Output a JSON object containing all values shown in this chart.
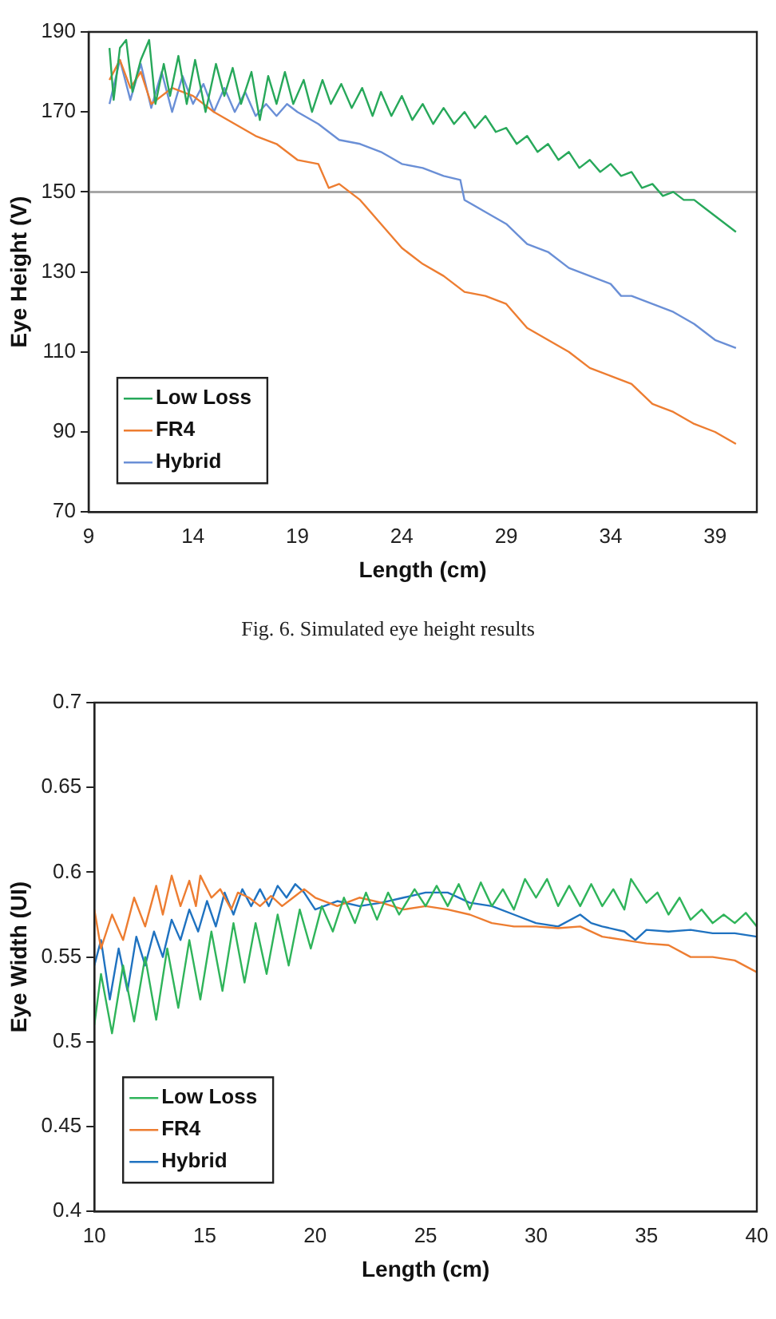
{
  "chart_data": [
    {
      "type": "line",
      "xlabel": "Length (cm)",
      "ylabel": "Eye Height (V)",
      "xlim": [
        9,
        41
      ],
      "xticks": [
        9,
        14,
        19,
        24,
        29,
        34,
        39
      ],
      "ylim": [
        70,
        190
      ],
      "yticks": [
        70,
        90,
        110,
        130,
        150,
        170,
        190
      ],
      "grid": false,
      "legend": "bottom left",
      "marker": "none",
      "line_style": "solid",
      "ref_lines": [
        {
          "axis": "y",
          "value": 150,
          "color": "#a6a6a6"
        }
      ],
      "annotations": [
        "Fig. 6.  Simulated eye height results"
      ],
      "series": [
        {
          "name": "Low Loss",
          "color": "#27a85a",
          "x": [
            10,
            10.2,
            10.5,
            10.8,
            11.1,
            11.5,
            11.9,
            12.2,
            12.6,
            12.9,
            13.3,
            13.7,
            14.1,
            14.6,
            15.1,
            15.5,
            15.9,
            16.3,
            16.8,
            17.2,
            17.6,
            18,
            18.4,
            18.8,
            19.3,
            19.7,
            20.2,
            20.6,
            21.1,
            21.6,
            22.1,
            22.6,
            23,
            23.5,
            24,
            24.5,
            25,
            25.5,
            26,
            26.5,
            27,
            27.5,
            28,
            28.5,
            29,
            29.5,
            30,
            30.5,
            31,
            31.5,
            32,
            32.5,
            33,
            33.5,
            34,
            34.5,
            35,
            35.5,
            36,
            36.5,
            37,
            37.5,
            38,
            38.5,
            39,
            39.5,
            40
          ],
          "values": [
            186,
            173,
            186,
            188,
            175,
            183,
            188,
            172,
            182,
            174,
            184,
            172,
            183,
            170,
            182,
            174,
            181,
            172,
            180,
            168,
            179,
            172,
            180,
            172,
            178,
            170,
            178,
            172,
            177,
            171,
            176,
            169,
            175,
            169,
            174,
            168,
            172,
            167,
            171,
            167,
            170,
            166,
            169,
            165,
            166,
            162,
            164,
            160,
            162,
            158,
            160,
            156,
            158,
            155,
            157,
            154,
            155,
            151,
            152,
            149,
            150,
            148,
            148,
            146,
            144,
            142,
            140
          ]
        },
        {
          "name": "FR4",
          "color": "#ed7d31",
          "x": [
            10,
            10.5,
            11,
            11.5,
            12,
            13,
            14,
            15,
            16,
            17,
            18,
            19,
            20,
            20.5,
            21,
            22,
            23,
            24,
            25,
            26,
            27,
            28,
            29,
            30,
            31,
            32,
            33,
            34,
            35,
            36,
            37,
            38,
            39,
            40
          ],
          "values": [
            178,
            183,
            176,
            180,
            172,
            176,
            174,
            170,
            167,
            164,
            162,
            158,
            157,
            151,
            152,
            148,
            142,
            136,
            132,
            129,
            125,
            124,
            122,
            116,
            113,
            110,
            106,
            104,
            102,
            97,
            95,
            92,
            90,
            87
          ]
        },
        {
          "name": "Hybrid",
          "color": "#6a8fd6",
          "x": [
            10,
            10.5,
            11,
            11.5,
            12,
            12.5,
            13,
            13.5,
            14,
            14.5,
            15,
            15.5,
            16,
            16.5,
            17,
            17.5,
            18,
            18.5,
            19,
            20,
            21,
            22,
            23,
            24,
            25,
            26,
            26.8,
            27,
            28,
            29,
            30,
            31,
            32,
            33,
            34,
            34.5,
            35,
            36,
            37,
            38,
            39,
            40
          ],
          "values": [
            172,
            183,
            173,
            182,
            171,
            180,
            170,
            179,
            172,
            177,
            170,
            176,
            170,
            175,
            169,
            172,
            169,
            172,
            170,
            167,
            163,
            162,
            160,
            157,
            156,
            154,
            153,
            148,
            145,
            142,
            137,
            135,
            131,
            129,
            127,
            124,
            124,
            122,
            120,
            117,
            113,
            111
          ]
        }
      ]
    },
    {
      "type": "line",
      "xlabel": "Length (cm)",
      "ylabel": "Eye Width (UI)",
      "xlim": [
        10,
        40
      ],
      "xticks": [
        10,
        15,
        20,
        25,
        30,
        35,
        40
      ],
      "ylim": [
        0.4,
        0.7
      ],
      "yticks": [
        0.4,
        0.45,
        0.5,
        0.55,
        0.6,
        0.65,
        0.7
      ],
      "grid": false,
      "legend": "bottom left",
      "marker": "none",
      "line_style": "solid",
      "series": [
        {
          "name": "Low Loss",
          "color": "#2fb45a",
          "x": [
            10,
            10.3,
            10.8,
            11.3,
            11.8,
            12.3,
            12.8,
            13.3,
            13.8,
            14.3,
            14.8,
            15.3,
            15.8,
            16.3,
            16.8,
            17.3,
            17.8,
            18.3,
            18.8,
            19.3,
            19.8,
            20.3,
            20.8,
            21.3,
            21.8,
            22.3,
            22.8,
            23.3,
            23.8,
            24.5,
            25,
            25.5,
            26,
            26.5,
            27,
            27.5,
            28,
            28.5,
            29,
            29.5,
            30,
            30.5,
            31,
            31.5,
            32,
            32.5,
            33,
            33.5,
            34,
            34.3,
            35,
            35.5,
            36,
            36.5,
            37,
            37.5,
            38,
            38.5,
            39,
            39.5,
            40
          ],
          "values": [
            0.51,
            0.54,
            0.505,
            0.545,
            0.512,
            0.55,
            0.513,
            0.555,
            0.52,
            0.56,
            0.525,
            0.565,
            0.53,
            0.57,
            0.535,
            0.57,
            0.54,
            0.575,
            0.545,
            0.578,
            0.555,
            0.58,
            0.565,
            0.585,
            0.57,
            0.588,
            0.572,
            0.588,
            0.575,
            0.59,
            0.58,
            0.592,
            0.58,
            0.593,
            0.578,
            0.594,
            0.58,
            0.59,
            0.578,
            0.596,
            0.585,
            0.596,
            0.58,
            0.592,
            0.58,
            0.593,
            0.58,
            0.59,
            0.578,
            0.596,
            0.582,
            0.588,
            0.575,
            0.585,
            0.572,
            0.578,
            0.57,
            0.575,
            0.57,
            0.576,
            0.568
          ]
        },
        {
          "name": "FR4",
          "color": "#ed7d31",
          "x": [
            10,
            10.3,
            10.8,
            11.3,
            11.8,
            12.3,
            12.8,
            13.1,
            13.5,
            13.9,
            14.3,
            14.6,
            14.8,
            15.3,
            15.7,
            16.2,
            16.5,
            17,
            17.5,
            18,
            18.5,
            19,
            19.5,
            20,
            21,
            22,
            23,
            24,
            25,
            26,
            27,
            28,
            29,
            30,
            31,
            32,
            33,
            34,
            35,
            36,
            37,
            38,
            39,
            40
          ],
          "values": [
            0.578,
            0.555,
            0.575,
            0.56,
            0.585,
            0.568,
            0.592,
            0.575,
            0.598,
            0.58,
            0.595,
            0.58,
            0.598,
            0.585,
            0.59,
            0.578,
            0.588,
            0.585,
            0.58,
            0.586,
            0.58,
            0.585,
            0.59,
            0.585,
            0.58,
            0.585,
            0.582,
            0.578,
            0.58,
            0.578,
            0.575,
            0.57,
            0.568,
            0.568,
            0.567,
            0.568,
            0.562,
            0.56,
            0.558,
            0.557,
            0.55,
            0.55,
            0.548,
            0.541
          ]
        },
        {
          "name": "Hybrid",
          "color": "#1f72c0",
          "x": [
            10,
            10.3,
            10.7,
            11.1,
            11.5,
            11.9,
            12.3,
            12.7,
            13.1,
            13.5,
            13.9,
            14.3,
            14.7,
            15.1,
            15.5,
            15.9,
            16.3,
            16.7,
            17.1,
            17.5,
            17.9,
            18.3,
            18.7,
            19.1,
            19.5,
            20,
            21,
            22,
            23,
            24,
            25,
            26,
            27,
            28,
            29,
            30,
            31,
            32,
            32.5,
            33,
            34,
            34.5,
            35,
            36,
            37,
            38,
            39,
            40
          ],
          "values": [
            0.545,
            0.56,
            0.525,
            0.555,
            0.53,
            0.562,
            0.545,
            0.565,
            0.55,
            0.572,
            0.56,
            0.578,
            0.565,
            0.583,
            0.568,
            0.588,
            0.575,
            0.59,
            0.58,
            0.59,
            0.58,
            0.592,
            0.585,
            0.593,
            0.588,
            0.578,
            0.583,
            0.58,
            0.582,
            0.585,
            0.588,
            0.588,
            0.582,
            0.58,
            0.575,
            0.57,
            0.568,
            0.575,
            0.57,
            0.568,
            0.565,
            0.56,
            0.566,
            0.565,
            0.566,
            0.564,
            0.564,
            0.562
          ]
        }
      ]
    }
  ]
}
